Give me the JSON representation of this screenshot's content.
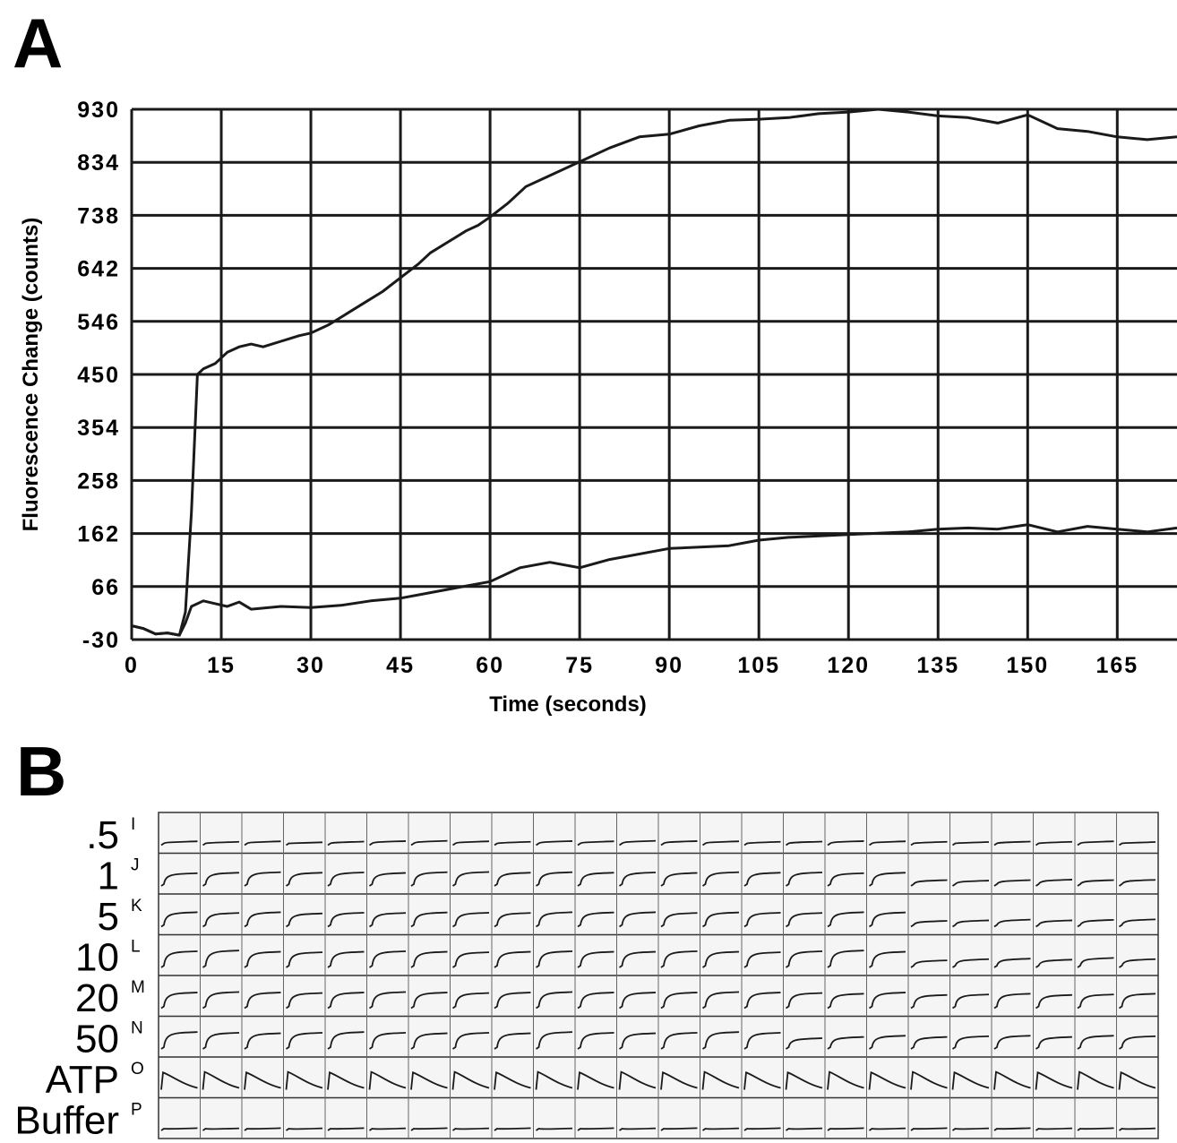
{
  "panels": {
    "a_label": "A",
    "b_label": "B"
  },
  "chart_data": [
    {
      "type": "line",
      "panel": "A",
      "xlabel": "Time (seconds)",
      "ylabel": "Fluorescence Change (counts)",
      "xlim": [
        0,
        175
      ],
      "ylim": [
        -30,
        930
      ],
      "x_ticks": [
        "0",
        "15",
        "30",
        "45",
        "60",
        "75",
        "90",
        "105",
        "120",
        "135",
        "150",
        "165"
      ],
      "y_ticks": [
        "-30",
        "66",
        "162",
        "258",
        "354",
        "450",
        "546",
        "642",
        "738",
        "834",
        "930"
      ],
      "grid": true,
      "series": [
        {
          "x": [
            0,
            2,
            4,
            6,
            8,
            9,
            10,
            11,
            12,
            14,
            16,
            18,
            20,
            22,
            25,
            28,
            30,
            33,
            36,
            39,
            42,
            45,
            48,
            50,
            53,
            56,
            58,
            60,
            63,
            66,
            70,
            75,
            80,
            85,
            90,
            95,
            100,
            105,
            110,
            115,
            120,
            125,
            130,
            135,
            140,
            145,
            150,
            155,
            160,
            165,
            170,
            175
          ],
          "y": [
            -5,
            -10,
            -20,
            -18,
            -22,
            20,
            200,
            450,
            460,
            470,
            490,
            500,
            505,
            500,
            510,
            520,
            525,
            540,
            560,
            580,
            600,
            625,
            650,
            670,
            690,
            710,
            720,
            735,
            760,
            790,
            810,
            835,
            860,
            880,
            885,
            900,
            910,
            912,
            915,
            922,
            925,
            930,
            925,
            918,
            915,
            905,
            920,
            895,
            890,
            880,
            875,
            880
          ],
          "color": "#1a1a1a"
        },
        {
          "x": [
            0,
            2,
            4,
            6,
            8,
            9,
            10,
            12,
            14,
            16,
            18,
            20,
            25,
            30,
            35,
            40,
            45,
            50,
            55,
            60,
            65,
            70,
            75,
            80,
            90,
            100,
            105,
            110,
            120,
            130,
            135,
            140,
            145,
            150,
            155,
            160,
            165,
            170,
            175
          ],
          "y": [
            -5,
            -10,
            -20,
            -18,
            -22,
            0,
            30,
            40,
            35,
            30,
            38,
            25,
            30,
            28,
            32,
            40,
            45,
            55,
            65,
            75,
            100,
            110,
            100,
            115,
            135,
            140,
            150,
            155,
            160,
            165,
            170,
            172,
            170,
            178,
            165,
            175,
            170,
            165,
            172
          ],
          "color": "#1a1a1a"
        }
      ]
    },
    {
      "type": "line",
      "panel": "B",
      "row_concentrations": [
        ".5",
        "1",
        "5",
        "10",
        "20",
        "50",
        "ATP",
        "Buffer"
      ],
      "row_letters": [
        "I",
        "J",
        "K",
        "L",
        "M",
        "N",
        "O",
        "P"
      ],
      "columns": 24,
      "grid": true,
      "levels": [
        [
          0.12,
          0.1,
          0.12,
          0.08,
          0.11,
          0.13,
          0.14,
          0.12,
          0.1,
          0.13,
          0.12,
          0.14,
          0.13,
          0.12,
          0.1,
          0.11,
          0.13,
          0.12,
          0.1,
          0.09,
          0.11,
          0.1,
          0.12,
          0.09
        ],
        [
          0.48,
          0.5,
          0.52,
          0.5,
          0.51,
          0.49,
          0.52,
          0.53,
          0.5,
          0.52,
          0.5,
          0.51,
          0.49,
          0.52,
          0.5,
          0.51,
          0.48,
          0.5,
          0.2,
          0.18,
          0.2,
          0.22,
          0.2,
          0.21
        ],
        [
          0.55,
          0.52,
          0.55,
          0.5,
          0.53,
          0.52,
          0.54,
          0.53,
          0.52,
          0.55,
          0.54,
          0.55,
          0.52,
          0.54,
          0.53,
          0.52,
          0.55,
          0.54,
          0.2,
          0.22,
          0.25,
          0.22,
          0.24,
          0.26
        ],
        [
          0.62,
          0.65,
          0.6,
          0.58,
          0.6,
          0.62,
          0.6,
          0.58,
          0.6,
          0.62,
          0.6,
          0.6,
          0.62,
          0.6,
          0.58,
          0.62,
          0.65,
          0.6,
          0.25,
          0.3,
          0.32,
          0.28,
          0.35,
          0.3
        ],
        [
          0.6,
          0.62,
          0.6,
          0.58,
          0.6,
          0.62,
          0.6,
          0.58,
          0.6,
          0.62,
          0.6,
          0.6,
          0.6,
          0.62,
          0.6,
          0.58,
          0.55,
          0.6,
          0.5,
          0.52,
          0.55,
          0.5,
          0.52,
          0.55
        ],
        [
          0.65,
          0.62,
          0.6,
          0.62,
          0.65,
          0.62,
          0.6,
          0.62,
          0.6,
          0.65,
          0.62,
          0.6,
          0.62,
          0.65,
          0.62,
          0.4,
          0.45,
          0.5,
          0.45,
          0.48,
          0.5,
          0.45,
          0.5,
          0.48
        ],
        [
          0.7,
          0.72,
          0.7,
          0.72,
          0.7,
          0.72,
          0.7,
          0.72,
          0.7,
          0.72,
          0.7,
          0.72,
          0.7,
          0.72,
          0.7,
          0.7,
          0.72,
          0.7,
          0.72,
          0.7,
          0.72,
          0.7,
          0.72,
          0.7
        ],
        [
          0.06,
          0.05,
          0.06,
          0.05,
          0.06,
          0.05,
          0.06,
          0.05,
          0.06,
          0.05,
          0.06,
          0.05,
          0.06,
          0.05,
          0.06,
          0.05,
          0.06,
          0.05,
          0.06,
          0.05,
          0.06,
          0.05,
          0.06,
          0.05
        ]
      ]
    }
  ]
}
